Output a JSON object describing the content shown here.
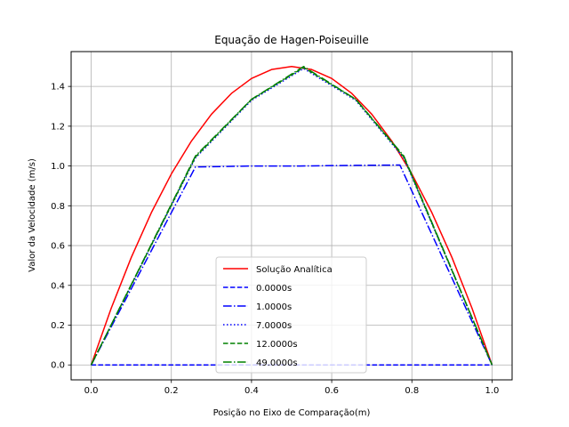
{
  "chart_data": {
    "type": "line",
    "title": "Equação de Hagen-Poiseuille",
    "xlabel": "Posição no Eixo de Comparação(m)",
    "ylabel": "Valor da Velocidade (m/s)",
    "xlim": [
      -0.05,
      1.05
    ],
    "ylim": [
      -0.075,
      1.575
    ],
    "xticks": [
      "0.0",
      "0.2",
      "0.4",
      "0.6",
      "0.8",
      "1.0"
    ],
    "xtick_values": [
      0.0,
      0.2,
      0.4,
      0.6,
      0.8,
      1.0
    ],
    "yticks": [
      "0.0",
      "0.2",
      "0.4",
      "0.6",
      "0.8",
      "1.0",
      "1.2",
      "1.4"
    ],
    "ytick_values": [
      0.0,
      0.2,
      0.4,
      0.6,
      0.8,
      1.0,
      1.2,
      1.4
    ],
    "grid": true,
    "legend_position": "bottom-center",
    "series": [
      {
        "name": "Solução Analítica",
        "color": "#ff0000",
        "style": "solid",
        "x": [
          0.0,
          0.05,
          0.1,
          0.15,
          0.2,
          0.25,
          0.3,
          0.35,
          0.4,
          0.45,
          0.5,
          0.55,
          0.6,
          0.65,
          0.7,
          0.75,
          0.8,
          0.85,
          0.9,
          0.95,
          1.0
        ],
        "y": [
          0.0,
          0.285,
          0.54,
          0.765,
          0.96,
          1.125,
          1.26,
          1.365,
          1.44,
          1.485,
          1.5,
          1.485,
          1.44,
          1.365,
          1.26,
          1.125,
          0.96,
          0.765,
          0.54,
          0.285,
          0.0
        ]
      },
      {
        "name": "0.0000s",
        "color": "#0000ff",
        "style": "dashed",
        "x": [
          0.0,
          1.0
        ],
        "y": [
          0.0,
          0.0
        ]
      },
      {
        "name": "1.0000s",
        "color": "#0000ff",
        "style": "dashdot",
        "x": [
          0.0,
          0.26,
          0.4,
          0.52,
          0.66,
          0.77,
          1.0
        ],
        "y": [
          0.0,
          0.995,
          1.0,
          1.0,
          1.003,
          1.005,
          0.0
        ]
      },
      {
        "name": "7.0000s",
        "color": "#0000ff",
        "style": "dotted",
        "x": [
          0.0,
          0.26,
          0.4,
          0.53,
          0.66,
          0.78,
          1.0
        ],
        "y": [
          0.0,
          1.04,
          1.33,
          1.49,
          1.33,
          1.04,
          0.0
        ]
      },
      {
        "name": "12.0000s",
        "color": "#008000",
        "style": "dashed",
        "x": [
          0.0,
          0.26,
          0.4,
          0.53,
          0.66,
          0.78,
          1.0
        ],
        "y": [
          0.0,
          1.045,
          1.335,
          1.495,
          1.335,
          1.045,
          0.0
        ]
      },
      {
        "name": "49.0000s",
        "color": "#008000",
        "style": "dashdot",
        "x": [
          0.0,
          0.26,
          0.4,
          0.53,
          0.66,
          0.78,
          1.0
        ],
        "y": [
          0.0,
          1.05,
          1.335,
          1.5,
          1.335,
          1.05,
          0.0
        ]
      }
    ]
  }
}
